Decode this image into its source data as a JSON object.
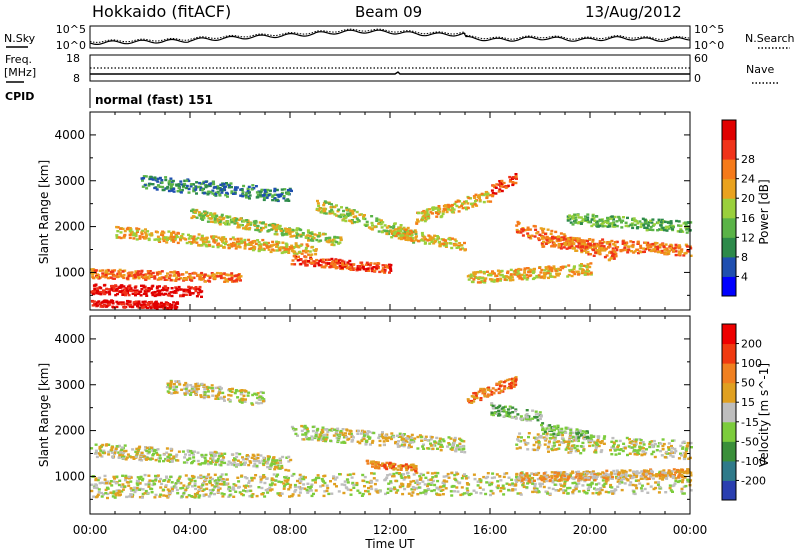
{
  "header": {
    "station": "Hokkaido (fitACF)",
    "beam": "Beam 09",
    "date": "13/Aug/2012"
  },
  "noise_panel": {
    "left_label": "N.Sky",
    "right_label": "N.Search",
    "ticks_left": [
      "10^5",
      "10^0"
    ],
    "ticks_right": [
      "10^5",
      "10^0"
    ]
  },
  "freq_panel": {
    "left_label_1": "Freq.",
    "left_label_2": "[MHz]",
    "right_label": "Nave",
    "left_ticks": [
      "18",
      "8"
    ],
    "right_ticks": [
      "60",
      "0"
    ]
  },
  "cpid": {
    "label": "CPID",
    "value": "normal (fast) 151"
  },
  "chart_data": [
    {
      "type": "heatmap",
      "title": "",
      "ylabel": "Slant Range [km]",
      "ylim": [
        180,
        4500
      ],
      "yticks": [
        "1000",
        "2000",
        "3000",
        "4000"
      ],
      "colorbar": {
        "label": "Power [dB]",
        "ticks": [
          "4",
          "8",
          "12",
          "16",
          "20",
          "24",
          "28"
        ],
        "range": [
          0,
          30
        ],
        "colors": [
          "#0000ff",
          "#1f4fb0",
          "#2d8a4a",
          "#5ab347",
          "#9ad03c",
          "#e9a21e",
          "#f57a1a",
          "#f0331a",
          "#e00000"
        ]
      }
    },
    {
      "type": "heatmap",
      "title": "",
      "ylabel": "Slant Range [km]",
      "xlabel": "Time UT",
      "ylim": [
        180,
        4500
      ],
      "yticks": [
        "1000",
        "2000",
        "3000",
        "4000"
      ],
      "xticks": [
        "00:00",
        "04:00",
        "08:00",
        "12:00",
        "16:00",
        "20:00",
        "00:00"
      ],
      "colorbar": {
        "label": "Velocity [m s^-1]",
        "ticks": [
          "200",
          "100",
          "50",
          "15",
          "-15",
          "-50",
          "-100",
          "-200"
        ],
        "range": [
          -250,
          250
        ],
        "colors": [
          "#2a3fb0",
          "#2f7a8a",
          "#3a8f3a",
          "#7ccc3c",
          "#bebebe",
          "#e0a020",
          "#f08020",
          "#f03a10",
          "#ee0000"
        ]
      }
    }
  ]
}
